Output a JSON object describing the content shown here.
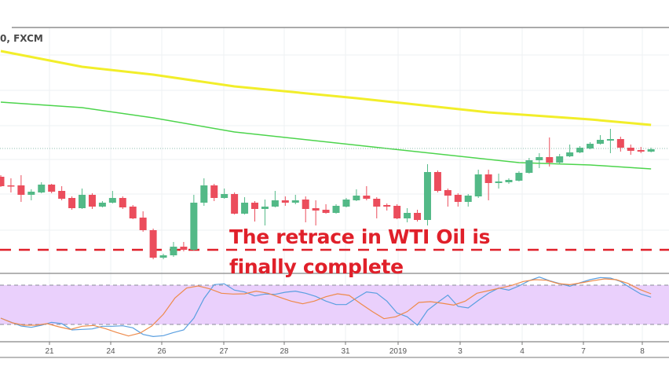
{
  "header": {
    "symbol_label": "0, FXCM"
  },
  "annotation": {
    "line1": "The retrace in WTI Oil is",
    "line2": "finally complete",
    "color": "#e0202a"
  },
  "colors": {
    "up": "#53b987",
    "down": "#eb4d5c",
    "ma_slow": "#f2ee2a",
    "ma_fast": "#4cd44c",
    "support": "#e0202a",
    "stoch_k": "#5a9fe0",
    "stoch_d": "#ee8a4a",
    "stoch_band": "#ead0fc",
    "last_price": "#8fbfb0"
  },
  "chart_data": [
    {
      "type": "candlestick",
      "title": "",
      "x_tick_labels": [
        "21",
        "24",
        "26",
        "27",
        "28",
        "31",
        "2019",
        "3",
        "4",
        "7",
        "8"
      ],
      "grid": true,
      "candles_ohlc": [
        [
          48.4,
          48.48,
          47.88,
          47.92
        ],
        [
          47.96,
          48.32,
          47.6,
          47.92
        ],
        [
          47.96,
          48.48,
          47.12,
          47.48
        ],
        [
          47.48,
          47.76,
          47.2,
          47.64
        ],
        [
          47.6,
          48.12,
          47.56,
          48.0
        ],
        [
          48.0,
          48.04,
          47.56,
          47.64
        ],
        [
          47.68,
          47.92,
          47.2,
          47.28
        ],
        [
          47.32,
          47.4,
          46.72,
          46.8
        ],
        [
          46.8,
          47.8,
          46.76,
          47.48
        ],
        [
          47.48,
          47.56,
          46.76,
          46.88
        ],
        [
          46.88,
          47.16,
          46.84,
          47.08
        ],
        [
          47.08,
          47.68,
          47.04,
          47.32
        ],
        [
          47.32,
          47.4,
          46.76,
          46.84
        ],
        [
          46.88,
          46.96,
          46.24,
          46.28
        ],
        [
          46.32,
          46.64,
          45.6,
          45.68
        ],
        [
          45.68,
          45.76,
          44.2,
          44.28
        ],
        [
          44.28,
          44.48,
          44.2,
          44.4
        ],
        [
          44.4,
          45.08,
          44.32,
          44.84
        ],
        [
          44.84,
          45.08,
          44.6,
          44.68
        ],
        [
          44.68,
          47.48,
          44.64,
          47.08
        ],
        [
          47.08,
          48.32,
          46.92,
          47.96
        ],
        [
          47.96,
          48.04,
          47.16,
          47.32
        ],
        [
          47.32,
          47.8,
          47.28,
          47.52
        ],
        [
          47.52,
          47.6,
          46.48,
          46.52
        ],
        [
          46.52,
          47.36,
          46.48,
          47.08
        ],
        [
          47.08,
          47.16,
          46.12,
          46.76
        ],
        [
          46.76,
          47.24,
          45.92,
          46.88
        ],
        [
          46.88,
          47.68,
          46.84,
          47.2
        ],
        [
          47.2,
          47.4,
          46.92,
          47.08
        ],
        [
          47.08,
          47.48,
          47.0,
          47.2
        ],
        [
          47.24,
          47.4,
          46.08,
          46.76
        ],
        [
          46.8,
          47.2,
          45.92,
          46.68
        ],
        [
          46.72,
          47.0,
          46.52,
          46.56
        ],
        [
          46.56,
          47.0,
          46.52,
          46.92
        ],
        [
          46.88,
          47.32,
          46.84,
          47.24
        ],
        [
          47.2,
          47.76,
          47.16,
          47.44
        ],
        [
          47.44,
          47.92,
          47.2,
          47.28
        ],
        [
          47.28,
          47.36,
          46.28,
          46.88
        ],
        [
          46.96,
          47.04,
          46.68,
          46.88
        ],
        [
          46.92,
          47.0,
          46.24,
          46.28
        ],
        [
          46.28,
          46.8,
          46.08,
          46.56
        ],
        [
          46.56,
          46.72,
          46.12,
          46.2
        ],
        [
          46.2,
          49.04,
          45.92,
          48.64
        ],
        [
          48.64,
          48.72,
          47.6,
          47.68
        ],
        [
          47.72,
          47.8,
          46.88,
          47.44
        ],
        [
          47.48,
          47.56,
          46.88,
          47.12
        ],
        [
          47.12,
          47.52,
          46.88,
          47.44
        ],
        [
          47.4,
          48.76,
          47.32,
          48.52
        ],
        [
          48.52,
          48.76,
          47.2,
          48.08
        ],
        [
          48.08,
          48.56,
          47.8,
          48.16
        ],
        [
          48.12,
          48.32,
          48.04,
          48.24
        ],
        [
          48.2,
          48.68,
          48.16,
          48.6
        ],
        [
          48.6,
          49.36,
          48.56,
          49.24
        ],
        [
          49.24,
          49.6,
          48.84,
          49.4
        ],
        [
          49.4,
          50.4,
          48.92,
          49.12
        ],
        [
          49.12,
          49.56,
          49.04,
          49.44
        ],
        [
          49.44,
          50.04,
          49.4,
          49.64
        ],
        [
          49.64,
          49.96,
          49.6,
          49.88
        ],
        [
          49.84,
          50.16,
          49.8,
          50.08
        ],
        [
          50.08,
          50.52,
          50.04,
          50.28
        ],
        [
          50.24,
          50.84,
          49.6,
          50.32
        ],
        [
          50.32,
          50.44,
          49.68,
          49.88
        ],
        [
          49.88,
          50.04,
          49.52,
          49.72
        ],
        [
          49.76,
          49.92,
          49.6,
          49.68
        ],
        [
          49.68,
          49.88,
          49.64,
          49.8
        ]
      ],
      "moving_averages": [
        {
          "color": "#f2ee2a",
          "points": [
            [
              0,
              54.8
            ],
            [
              8,
              54.0
            ],
            [
              15,
              53.6
            ],
            [
              23,
              53.0
            ],
            [
              35,
              52.4
            ],
            [
              48,
              51.68
            ],
            [
              58,
              51.32
            ],
            [
              64,
              51.04
            ]
          ]
        },
        {
          "color": "#4cd44c",
          "points": [
            [
              0,
              52.2
            ],
            [
              8,
              51.92
            ],
            [
              15,
              51.4
            ],
            [
              23,
              50.68
            ],
            [
              38,
              49.84
            ],
            [
              51,
              49.12
            ],
            [
              58,
              49.0
            ],
            [
              64,
              48.8
            ]
          ]
        }
      ],
      "support_level": 44.68,
      "last_price": 49.84,
      "y_range": [
        43.9,
        56.0
      ]
    },
    {
      "type": "line",
      "title": "",
      "ylim": [
        0,
        100
      ],
      "band": [
        20,
        80
      ],
      "series": [
        {
          "color": "#5a9fe0",
          "values": [
            29.6,
            23.6,
            17.6,
            15.6,
            18.8,
            23.2,
            21.2,
            11.6,
            12.4,
            13.2,
            17.2,
            17.2,
            18.0,
            14.8,
            4.8,
            1.6,
            2.8,
            7.6,
            11.6,
            29.6,
            59.6,
            80.8,
            82.0,
            72.4,
            69.6,
            63.6,
            66.4,
            66.0,
            69.2,
            70.8,
            67.6,
            62.8,
            55.6,
            50.4,
            50.4,
            60.4,
            69.6,
            67.6,
            55.6,
            37.6,
            31.6,
            18.8,
            41.6,
            53.6,
            64.8,
            47.6,
            45.2,
            56.8,
            67.6,
            75.6,
            72.4,
            78.8,
            86.8,
            92.4,
            86.8,
            82.4,
            78.4,
            83.6,
            88.4,
            91.6,
            90.8,
            85.6,
            75.6,
            66.4,
            61.6
          ]
        },
        {
          "color": "#ee8a4a",
          "values": [
            29.6,
            22.4,
            18.8,
            18.8,
            21.2,
            16.4,
            12.4,
            17.2,
            18.4,
            13.6,
            7.6,
            2.4,
            6.8,
            17.6,
            35.6,
            60.4,
            75.6,
            78.8,
            74.4,
            67.6,
            66.4,
            66.8,
            70.8,
            67.6,
            61.6,
            55.6,
            51.6,
            55.6,
            62.4,
            66.8,
            64.4,
            51.6,
            39.6,
            28.8,
            31.6,
            39.6,
            53.6,
            54.8,
            52.4,
            49.6,
            55.6,
            67.6,
            71.6,
            75.6,
            79.6,
            85.6,
            88.4,
            87.6,
            82.4,
            80.8,
            83.6,
            86.8,
            89.6,
            88.4,
            82.8,
            73.6,
            66.8
          ]
        }
      ]
    }
  ]
}
